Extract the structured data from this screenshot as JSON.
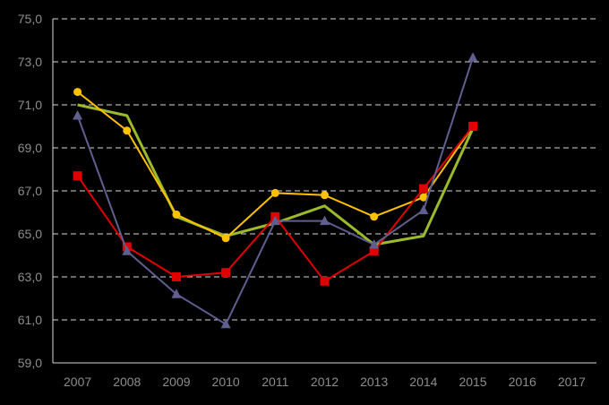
{
  "chart_data": {
    "type": "line",
    "title": "",
    "xlabel": "",
    "ylabel": "",
    "categories": [
      "2007",
      "2008",
      "2009",
      "2010",
      "2011",
      "2012",
      "2013",
      "2014",
      "2015",
      "2016",
      "2017"
    ],
    "ylim": [
      59,
      75
    ],
    "yticks": [
      59,
      61,
      63,
      65,
      67,
      69,
      71,
      73,
      75
    ],
    "ytick_labels": [
      "59,0",
      "61,0",
      "63,0",
      "65,0",
      "67,0",
      "69,0",
      "71,0",
      "73,0",
      "75,0"
    ],
    "grid": "horizontal-dashed",
    "legend": "none",
    "background": "#000000",
    "series": [
      {
        "color": "#9bbb2a",
        "marker": "none",
        "values": [
          71.0,
          70.5,
          65.8,
          64.9,
          65.5,
          66.3,
          64.5,
          64.9,
          69.9,
          null,
          null
        ]
      },
      {
        "color": "#ffc000",
        "marker": "circle",
        "values": [
          71.6,
          69.8,
          65.9,
          64.8,
          66.9,
          66.8,
          65.8,
          66.7,
          70.0,
          null,
          null
        ]
      },
      {
        "color": "#e00000",
        "marker": "square",
        "values": [
          67.7,
          64.4,
          63.0,
          63.2,
          65.8,
          62.8,
          64.2,
          67.1,
          70.0,
          null,
          null
        ]
      },
      {
        "color": "#5f5f8f",
        "marker": "triangle",
        "values": [
          70.5,
          64.2,
          62.2,
          60.8,
          65.6,
          65.6,
          64.5,
          66.1,
          73.2,
          null,
          null
        ]
      }
    ]
  }
}
